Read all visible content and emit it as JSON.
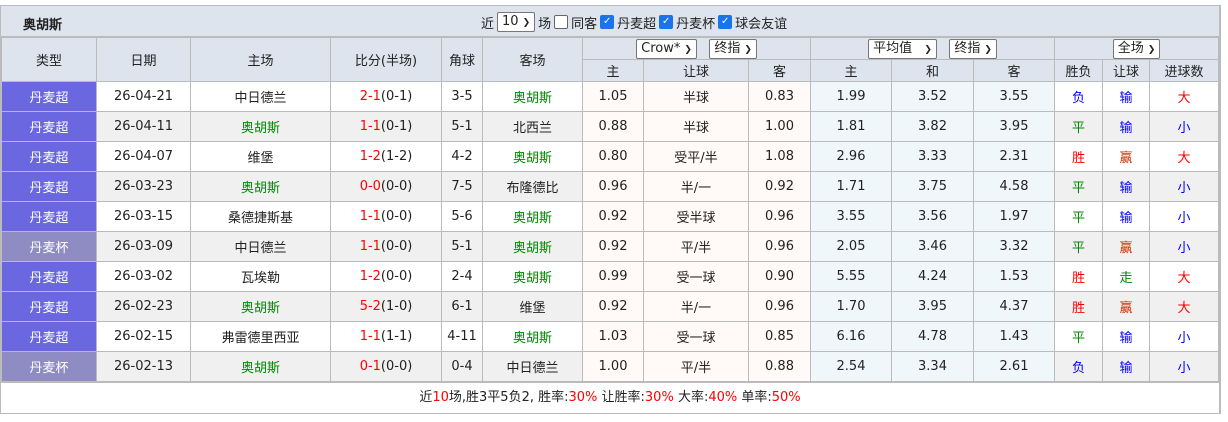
{
  "team": "奥胡斯",
  "filters": {
    "recent_label": "近",
    "recent_value": "10",
    "unit": "场",
    "same_home": {
      "label": "同客",
      "checked": false
    },
    "leagues": [
      {
        "label": "丹麦超",
        "checked": true
      },
      {
        "label": "丹麦杯",
        "checked": true
      },
      {
        "label": "球会友谊",
        "checked": true
      }
    ]
  },
  "headers": {
    "type": "类型",
    "date": "日期",
    "home": "主场",
    "score": "比分(半场)",
    "corner": "角球",
    "away": "客场",
    "company": "Crow*",
    "odds_kind1": "终指",
    "avg": "平均值",
    "odds_kind2": "终指",
    "period": "全场",
    "ah_home": "主",
    "ah_line": "让球",
    "ah_away": "客",
    "eu_home": "主",
    "eu_draw": "和",
    "eu_away": "客",
    "res_wl": "胜负",
    "res_ah": "让球",
    "res_goals": "进球数"
  },
  "rows": [
    {
      "type": "丹麦超",
      "date": "26-04-21",
      "home": "中日德兰",
      "score": "2-1",
      "half": "(0-1)",
      "corner": "3-5",
      "away": "奥胡斯",
      "ah_h": "1.05",
      "ah": "半球",
      "ah_a": "0.83",
      "eu_h": "1.99",
      "eu_d": "3.52",
      "eu_a": "3.55",
      "wl": "负",
      "ahr": "输",
      "goals": "大"
    },
    {
      "type": "丹麦超",
      "date": "26-04-11",
      "home": "奥胡斯",
      "score": "1-1",
      "half": "(0-1)",
      "corner": "5-1",
      "away": "北西兰",
      "ah_h": "0.88",
      "ah": "半球",
      "ah_a": "1.00",
      "eu_h": "1.81",
      "eu_d": "3.82",
      "eu_a": "3.95",
      "wl": "平",
      "ahr": "输",
      "goals": "小"
    },
    {
      "type": "丹麦超",
      "date": "26-04-07",
      "home": "维堡",
      "score": "1-2",
      "half": "(1-2)",
      "corner": "4-2",
      "away": "奥胡斯",
      "ah_h": "0.80",
      "ah": "受平/半",
      "ah_a": "1.08",
      "eu_h": "2.96",
      "eu_d": "3.33",
      "eu_a": "2.31",
      "wl": "胜",
      "ahr": "赢",
      "goals": "大"
    },
    {
      "type": "丹麦超",
      "date": "26-03-23",
      "home": "奥胡斯",
      "score": "0-0",
      "half": "(0-0)",
      "corner": "7-5",
      "away": "布隆德比",
      "ah_h": "0.96",
      "ah": "半/一",
      "ah_a": "0.92",
      "eu_h": "1.71",
      "eu_d": "3.75",
      "eu_a": "4.58",
      "wl": "平",
      "ahr": "输",
      "goals": "小"
    },
    {
      "type": "丹麦超",
      "date": "26-03-15",
      "home": "桑德捷斯基",
      "score": "1-1",
      "half": "(0-0)",
      "corner": "5-6",
      "away": "奥胡斯",
      "ah_h": "0.92",
      "ah": "受半球",
      "ah_a": "0.96",
      "eu_h": "3.55",
      "eu_d": "3.56",
      "eu_a": "1.97",
      "wl": "平",
      "ahr": "输",
      "goals": "小"
    },
    {
      "type": "丹麦杯",
      "date": "26-03-09",
      "home": "中日德兰",
      "score": "1-1",
      "half": "(0-0)",
      "corner": "5-1",
      "away": "奥胡斯",
      "ah_h": "0.92",
      "ah": "平/半",
      "ah_a": "0.96",
      "eu_h": "2.05",
      "eu_d": "3.46",
      "eu_a": "3.32",
      "wl": "平",
      "ahr": "赢",
      "goals": "小"
    },
    {
      "type": "丹麦超",
      "date": "26-03-02",
      "home": "瓦埃勒",
      "score": "1-2",
      "half": "(0-0)",
      "corner": "2-4",
      "away": "奥胡斯",
      "ah_h": "0.99",
      "ah": "受一球",
      "ah_a": "0.90",
      "eu_h": "5.55",
      "eu_d": "4.24",
      "eu_a": "1.53",
      "wl": "胜",
      "ahr": "走",
      "goals": "大"
    },
    {
      "type": "丹麦超",
      "date": "26-02-23",
      "home": "奥胡斯",
      "score": "5-2",
      "half": "(1-0)",
      "corner": "6-1",
      "away": "维堡",
      "ah_h": "0.92",
      "ah": "半/一",
      "ah_a": "0.96",
      "eu_h": "1.70",
      "eu_d": "3.95",
      "eu_a": "4.37",
      "wl": "胜",
      "ahr": "赢",
      "goals": "大"
    },
    {
      "type": "丹麦超",
      "date": "26-02-15",
      "home": "弗雷德里西亚",
      "score": "1-1",
      "half": "(1-1)",
      "corner": "4-11",
      "away": "奥胡斯",
      "ah_h": "1.03",
      "ah": "受一球",
      "ah_a": "0.85",
      "eu_h": "6.16",
      "eu_d": "4.78",
      "eu_a": "1.43",
      "wl": "平",
      "ahr": "输",
      "goals": "小"
    },
    {
      "type": "丹麦杯",
      "date": "26-02-13",
      "home": "奥胡斯",
      "score": "0-1",
      "half": "(0-0)",
      "corner": "0-4",
      "away": "中日德兰",
      "ah_h": "1.00",
      "ah": "平/半",
      "ah_a": "0.88",
      "eu_h": "2.54",
      "eu_d": "3.34",
      "eu_a": "2.61",
      "wl": "负",
      "ahr": "输",
      "goals": "小"
    }
  ],
  "summary": {
    "p1": "近",
    "n": "10",
    "p2": "场,胜3平5负2, 胜率:",
    "win": "30%",
    "p3": " 让胜率:",
    "ahwin": "30%",
    "p4": " 大率:",
    "big": "40%",
    "p5": " 单率:",
    "odd": "50%"
  },
  "colors": {
    "type_league": "#6a67e0",
    "type_cup": "#8f8bc3",
    "header_bg": "#dde4ee",
    "score": "#ff0000",
    "team": "#008800"
  }
}
